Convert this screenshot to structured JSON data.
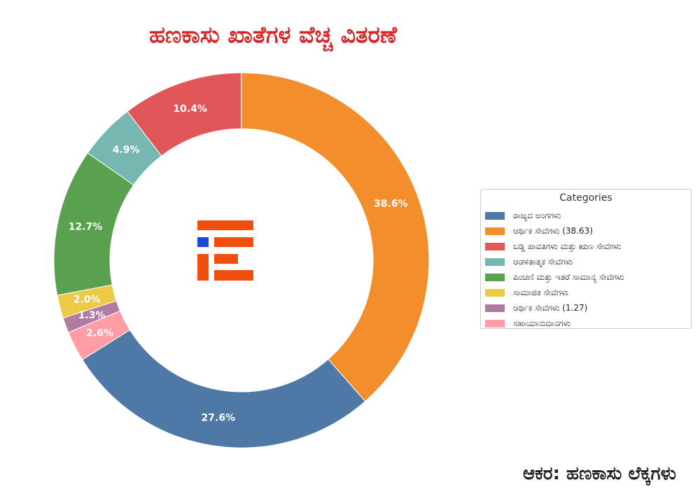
{
  "chart_data": {
    "type": "donut",
    "title": "ಹಣಕಾಸು ಖಾತೆಗಳ ವೆಚ್ಚ ವಿತರಣೆ",
    "categories": [
      "ರಾಜ್ಯದ ಅಂಗಗಳು",
      "ಆರ್ಥಿಕ ಸೇವೆಗಳು (38.63)",
      "ಬಡ್ಡಿ ಪಾವತಿಗಳು ಮತ್ತು ಋಣ ಸೇವೆಗಳು",
      "ಆಡಳಿತಾತ್ಮಕ ಸೇವೆಗಳು",
      "ಪಿಂಚಣಿ ಮತ್ತು ಇತರೆ ಸಾಮಾನ್ಯ ಸೇವೆಗಳು",
      "ಸಾಮಾಜಿಕ ಸೇವೆಗಳು",
      "ಆರ್ಥಿಕ ಸೇವೆಗಳು (1.27)",
      "ಸಹಾಯಾನುದಾನಗಳು"
    ],
    "values": [
      27.6,
      38.6,
      10.4,
      4.9,
      12.7,
      2.0,
      1.3,
      2.6
    ],
    "value_labels": [
      "27.6%",
      "38.6%",
      "10.4%",
      "4.9%",
      "12.7%",
      "2.0%",
      "1.3%",
      "2.6%"
    ],
    "colors": [
      "#4e79a7",
      "#f28e2b",
      "#e15759",
      "#76b7b2",
      "#59a14f",
      "#edc948",
      "#b07aa1",
      "#ff9da7"
    ],
    "legend_title": "Categories",
    "legend_position": "right"
  },
  "source_note": "ಆಕರ: ಹಣಕಾಸು ಲೆಕ್ಕಗಳು",
  "logo": {
    "icon": "ie-logo-icon",
    "colors": [
      "#f04e0c",
      "#1947d6"
    ]
  }
}
